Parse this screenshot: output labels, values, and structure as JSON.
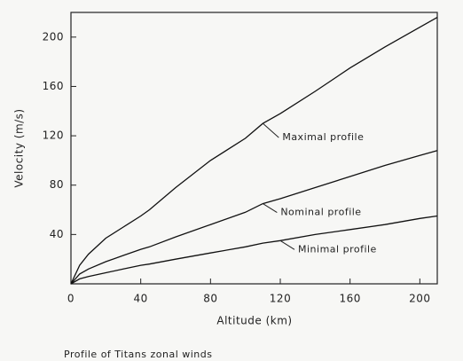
{
  "chart_data": {
    "type": "line",
    "xlabel": "Altitude (km)",
    "ylabel": "Velocity (m/s)",
    "caption": "Profile of Titans zonal winds",
    "x": [
      0,
      5,
      10,
      20,
      30,
      40,
      45,
      60,
      80,
      100,
      110,
      120,
      140,
      160,
      180,
      200,
      210
    ],
    "series": [
      {
        "name": "Maximal profile",
        "color": "#111111",
        "values": [
          0,
          15,
          24,
          37,
          46,
          55,
          60,
          78,
          100,
          118,
          130,
          138,
          156,
          175,
          192,
          208,
          216
        ]
      },
      {
        "name": "Nominal profile",
        "color": "#111111",
        "values": [
          0,
          8,
          12,
          18,
          23,
          28,
          30,
          38,
          48,
          58,
          65,
          69,
          78,
          87,
          96,
          104,
          108
        ]
      },
      {
        "name": "Minimal profile",
        "color": "#111111",
        "values": [
          0,
          4,
          6,
          9,
          12,
          15,
          16,
          20,
          25,
          30,
          33,
          35,
          40,
          44,
          48,
          53,
          55
        ]
      }
    ],
    "xlim": [
      0,
      210
    ],
    "xticks": [
      0,
      40,
      80,
      120,
      160,
      200
    ],
    "ylim": [
      0,
      220
    ],
    "yticks": [
      40,
      80,
      120,
      160,
      200
    ],
    "grid": false
  }
}
